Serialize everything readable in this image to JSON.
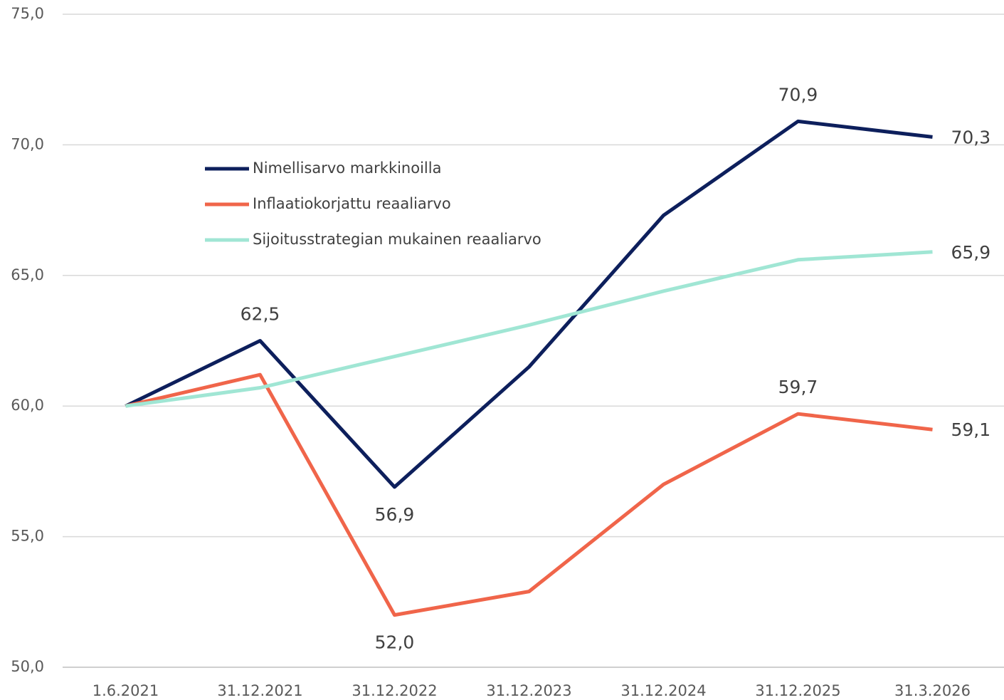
{
  "chart_data": {
    "type": "line",
    "categories": [
      "1.6.2021",
      "31.12.2021",
      "31.12.2022",
      "31.12.2023",
      "31.12.2024",
      "31.12.2025",
      "31.3.2026"
    ],
    "series": [
      {
        "name": "Nimellisarvo markkinoilla",
        "color": "#0d1f5c",
        "values": [
          60.0,
          62.5,
          56.9,
          61.5,
          67.3,
          70.9,
          70.3
        ],
        "value_labels": [
          null,
          "62,5",
          "56,9",
          null,
          null,
          "70,9",
          "70,3"
        ]
      },
      {
        "name": "Inflaatiokorjattu reaaliarvo",
        "color": "#f0654a",
        "values": [
          60.0,
          61.2,
          52.0,
          52.9,
          57.0,
          59.7,
          59.1
        ],
        "value_labels": [
          null,
          null,
          "52,0",
          null,
          null,
          "59,7",
          "59,1"
        ]
      },
      {
        "name": "Sijoitusstrategian mukainen reaaliarvo",
        "color": "#a0e6d4",
        "values": [
          60.0,
          60.7,
          61.9,
          63.1,
          64.4,
          65.6,
          65.9
        ],
        "value_labels": [
          null,
          null,
          null,
          null,
          null,
          null,
          "65,9"
        ]
      }
    ],
    "ylim": [
      50,
      75
    ],
    "yticks": [
      {
        "value": 50,
        "label": "50,0"
      },
      {
        "value": 55,
        "label": "55,0"
      },
      {
        "value": 60,
        "label": "60,0"
      },
      {
        "value": 65,
        "label": "65,0"
      },
      {
        "value": 70,
        "label": "70,0"
      },
      {
        "value": 75,
        "label": "75,0"
      }
    ],
    "grid": true,
    "legend": "upper left"
  }
}
